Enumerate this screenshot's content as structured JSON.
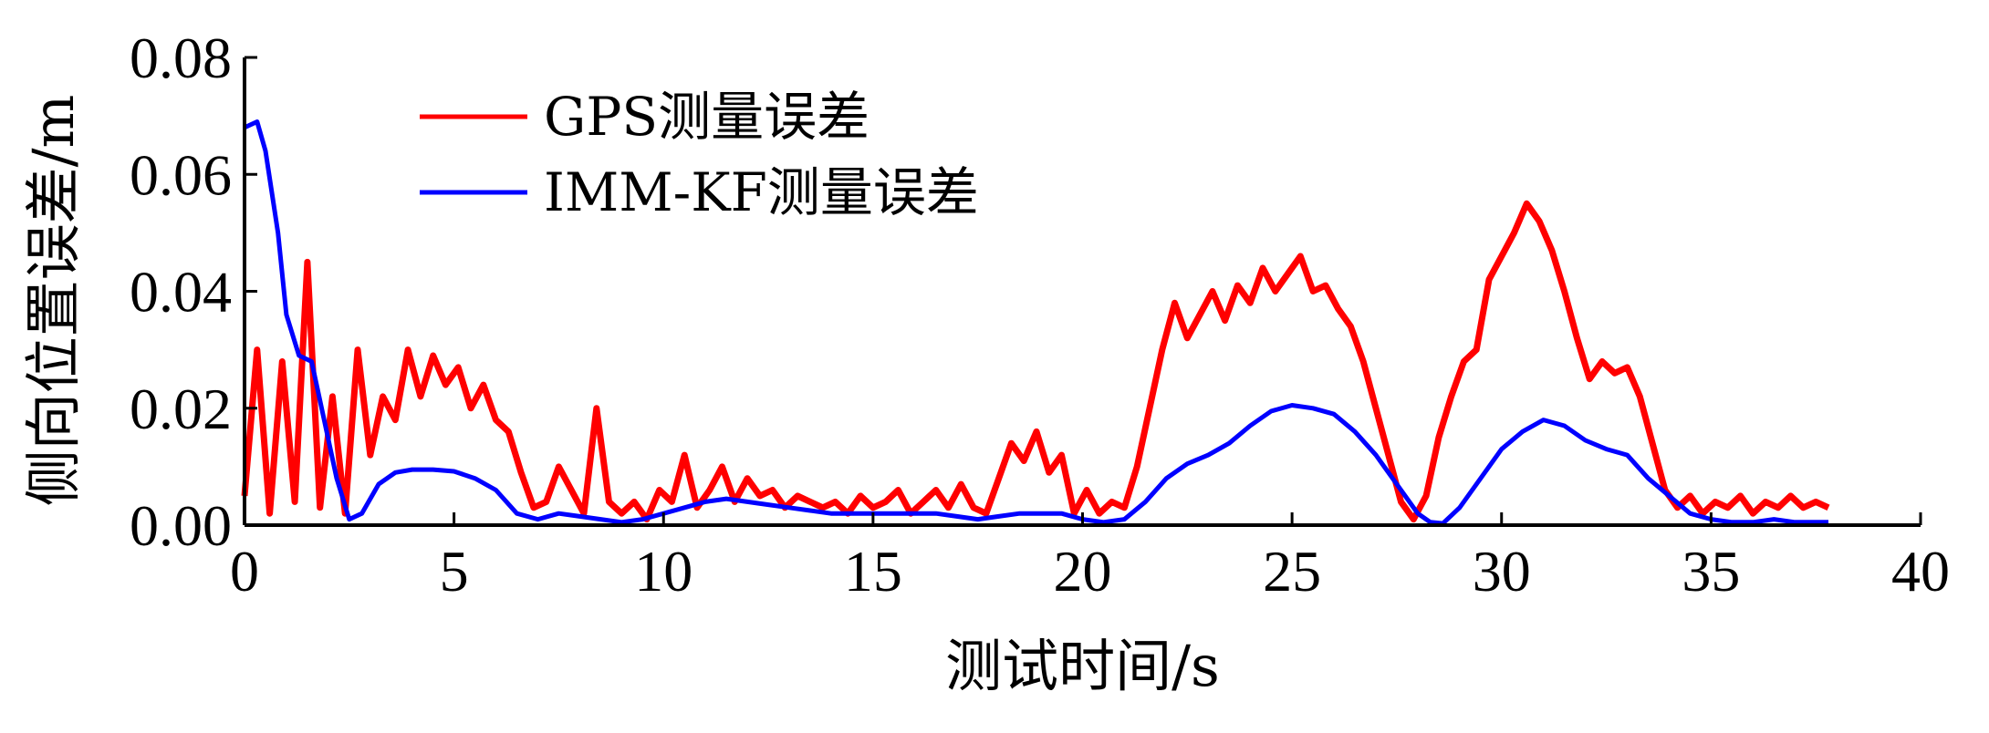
{
  "chart_data": {
    "type": "line",
    "xlabel": "测试时间/s",
    "ylabel": "侧向位置误差/m",
    "xlim": [
      0,
      40
    ],
    "ylim": [
      0,
      0.08
    ],
    "xticks": [
      "0",
      "5",
      "10",
      "15",
      "20",
      "25",
      "30",
      "35",
      "40"
    ],
    "yticks": [
      "0.00",
      "0.02",
      "0.04",
      "0.06",
      "0.08"
    ],
    "grid": false,
    "legend_position": "top-left",
    "series": [
      {
        "name": "GPS测量误差",
        "color": "#ff0000",
        "x": [
          0,
          0.3,
          0.6,
          0.9,
          1.2,
          1.5,
          1.8,
          2.1,
          2.4,
          2.7,
          3.0,
          3.3,
          3.6,
          3.9,
          4.2,
          4.5,
          4.8,
          5.1,
          5.4,
          5.7,
          6.0,
          6.3,
          6.6,
          6.9,
          7.2,
          7.5,
          7.8,
          8.1,
          8.4,
          8.7,
          9.0,
          9.3,
          9.6,
          9.9,
          10.2,
          10.5,
          10.8,
          11.1,
          11.4,
          11.7,
          12.0,
          12.3,
          12.6,
          12.9,
          13.2,
          13.5,
          13.8,
          14.1,
          14.4,
          14.7,
          15.0,
          15.3,
          15.6,
          15.9,
          16.2,
          16.5,
          16.8,
          17.1,
          17.4,
          17.7,
          18.0,
          18.3,
          18.6,
          18.9,
          19.2,
          19.5,
          19.8,
          20.1,
          20.4,
          20.7,
          21.0,
          21.3,
          21.6,
          21.9,
          22.2,
          22.5,
          22.8,
          23.1,
          23.4,
          23.7,
          24.0,
          24.3,
          24.6,
          24.9,
          25.2,
          25.5,
          25.8,
          26.1,
          26.4,
          26.7,
          27.0,
          27.3,
          27.6,
          27.9,
          28.2,
          28.5,
          28.8,
          29.1,
          29.4,
          29.7,
          30.0,
          30.3,
          30.6,
          30.9,
          31.2,
          31.5,
          31.8,
          32.1,
          32.4,
          32.7,
          33.0,
          33.3,
          33.6,
          33.9,
          34.2,
          34.5,
          34.8,
          35.1,
          35.4,
          35.7,
          36.0,
          36.3,
          36.6,
          36.9,
          37.2,
          37.5,
          37.8
        ],
        "values": [
          0.005,
          0.03,
          0.002,
          0.028,
          0.004,
          0.045,
          0.003,
          0.022,
          0.002,
          0.03,
          0.012,
          0.022,
          0.018,
          0.03,
          0.022,
          0.029,
          0.024,
          0.027,
          0.02,
          0.024,
          0.018,
          0.016,
          0.009,
          0.003,
          0.004,
          0.01,
          0.006,
          0.002,
          0.02,
          0.004,
          0.002,
          0.004,
          0.001,
          0.006,
          0.004,
          0.012,
          0.003,
          0.006,
          0.01,
          0.004,
          0.008,
          0.005,
          0.006,
          0.003,
          0.005,
          0.004,
          0.003,
          0.004,
          0.002,
          0.005,
          0.003,
          0.004,
          0.006,
          0.002,
          0.004,
          0.006,
          0.003,
          0.007,
          0.003,
          0.002,
          0.008,
          0.014,
          0.011,
          0.016,
          0.009,
          0.012,
          0.002,
          0.006,
          0.002,
          0.004,
          0.003,
          0.01,
          0.02,
          0.03,
          0.038,
          0.032,
          0.036,
          0.04,
          0.035,
          0.041,
          0.038,
          0.044,
          0.04,
          0.043,
          0.046,
          0.04,
          0.041,
          0.037,
          0.034,
          0.028,
          0.02,
          0.012,
          0.004,
          0.001,
          0.005,
          0.015,
          0.022,
          0.028,
          0.03,
          0.042,
          0.046,
          0.05,
          0.055,
          0.052,
          0.047,
          0.04,
          0.032,
          0.025,
          0.028,
          0.026,
          0.027,
          0.022,
          0.014,
          0.006,
          0.003,
          0.005,
          0.002,
          0.004,
          0.003,
          0.005,
          0.002,
          0.004,
          0.003,
          0.005,
          0.003,
          0.004,
          0.003
        ]
      },
      {
        "name": "IMM-KF测量误差",
        "color": "#0000ff",
        "x": [
          0,
          0.3,
          0.5,
          0.8,
          1.0,
          1.3,
          1.6,
          1.9,
          2.2,
          2.5,
          2.8,
          3.2,
          3.6,
          4.0,
          4.5,
          5.0,
          5.5,
          6.0,
          6.5,
          7.0,
          7.5,
          8.0,
          8.5,
          9.0,
          9.5,
          10.0,
          10.5,
          11.0,
          11.5,
          12.0,
          12.5,
          13.0,
          13.5,
          14.0,
          14.5,
          15.0,
          15.5,
          16.0,
          16.5,
          17.0,
          17.5,
          18.0,
          18.5,
          19.0,
          19.5,
          20.0,
          20.5,
          21.0,
          21.5,
          22.0,
          22.5,
          23.0,
          23.5,
          24.0,
          24.5,
          25.0,
          25.5,
          26.0,
          26.5,
          27.0,
          27.5,
          28.0,
          28.3,
          28.6,
          29.0,
          29.5,
          30.0,
          30.5,
          31.0,
          31.5,
          32.0,
          32.5,
          33.0,
          33.5,
          34.0,
          34.5,
          35.0,
          35.5,
          36.0,
          36.5,
          37.0,
          37.5,
          37.8
        ],
        "values": [
          0.068,
          0.069,
          0.064,
          0.05,
          0.036,
          0.029,
          0.028,
          0.018,
          0.008,
          0.001,
          0.002,
          0.007,
          0.009,
          0.0095,
          0.0095,
          0.0092,
          0.008,
          0.006,
          0.002,
          0.001,
          0.002,
          0.0015,
          0.001,
          0.0005,
          0.001,
          0.002,
          0.003,
          0.004,
          0.0045,
          0.004,
          0.0035,
          0.003,
          0.0025,
          0.002,
          0.002,
          0.002,
          0.002,
          0.002,
          0.002,
          0.0015,
          0.001,
          0.0015,
          0.002,
          0.002,
          0.002,
          0.001,
          0.0005,
          0.001,
          0.004,
          0.008,
          0.0105,
          0.012,
          0.014,
          0.017,
          0.0195,
          0.0205,
          0.02,
          0.019,
          0.016,
          0.012,
          0.007,
          0.002,
          0.0005,
          0.0003,
          0.003,
          0.008,
          0.013,
          0.016,
          0.018,
          0.017,
          0.0145,
          0.013,
          0.012,
          0.008,
          0.005,
          0.002,
          0.001,
          0.0005,
          0.0005,
          0.001,
          0.0005,
          0.0005,
          0.0005
        ]
      }
    ]
  }
}
